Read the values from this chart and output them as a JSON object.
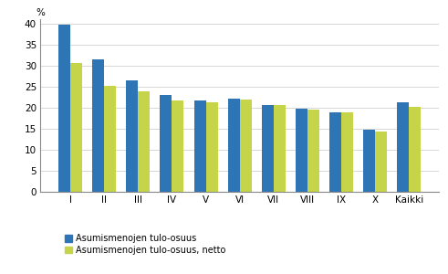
{
  "categories": [
    "I",
    "II",
    "III",
    "IV",
    "V",
    "VI",
    "VII",
    "VIII",
    "IX",
    "X",
    "Kaikki"
  ],
  "blue_values": [
    39.8,
    31.4,
    26.4,
    23.1,
    21.8,
    22.2,
    20.6,
    19.8,
    18.8,
    14.7,
    21.2
  ],
  "green_values": [
    30.5,
    25.2,
    23.9,
    21.8,
    21.2,
    21.9,
    20.5,
    19.6,
    18.8,
    14.4,
    20.1
  ],
  "blue_color": "#2E75B6",
  "green_color": "#C5D448",
  "ylabel": "%",
  "ylim": [
    0,
    41
  ],
  "yticks": [
    0,
    5,
    10,
    15,
    20,
    25,
    30,
    35,
    40
  ],
  "legend_blue": "Asumismenojen tulo-osuus",
  "legend_green": "Asumismenojen tulo-osuus, netto",
  "bar_width": 0.35,
  "background_color": "#ffffff",
  "grid_color": "#d0d0d0"
}
